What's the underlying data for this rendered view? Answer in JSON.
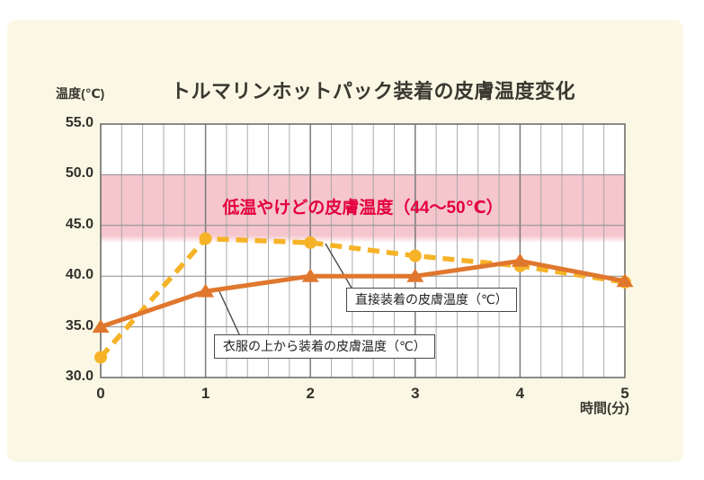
{
  "page": {
    "background_color": "#FFFFFF",
    "panel_color": "#FAF8E5"
  },
  "chart_data": {
    "type": "line",
    "title": "トルマリンホットパック装着の皮膚温度変化",
    "xlabel": "時間(分)",
    "ylabel": "温度(℃)",
    "xlim": [
      0,
      5
    ],
    "ylim": [
      30.0,
      55.0
    ],
    "x": [
      0,
      1,
      2,
      3,
      4,
      5
    ],
    "xtick_labels": [
      "0",
      "1",
      "2",
      "3",
      "4",
      "5"
    ],
    "ytick_labels": [
      "30.0",
      "35.0",
      "40.0",
      "45.0",
      "50.0",
      "55.0"
    ],
    "yticks": [
      30,
      35,
      40,
      45,
      50,
      55
    ],
    "x_minor_step": 0.2,
    "grid": true,
    "series": [
      {
        "name": "直接装着の皮膚温度（℃）",
        "values": [
          32.0,
          43.7,
          43.3,
          42.0,
          41.0,
          39.4
        ],
        "style": "dashed",
        "marker": "circle",
        "color": "#F6B327"
      },
      {
        "name": "衣服の上から装着の皮膚温度（℃）",
        "values": [
          35.0,
          38.5,
          40.0,
          40.0,
          41.5,
          39.5
        ],
        "style": "solid",
        "marker": "triangle",
        "color": "#E0772E"
      }
    ],
    "band": {
      "from": 44,
      "to": 50,
      "color": "#F5C6CC",
      "label": "低温やけどの皮膚温度（44～50℃）",
      "label_color": "#E3003E"
    },
    "grid_colors": {
      "minor": "#ABABAB",
      "major": "#7A7A7A",
      "horizontal": "#8C8C8C",
      "border": "#6E6E6E",
      "leader": "#4a4a4a"
    }
  }
}
